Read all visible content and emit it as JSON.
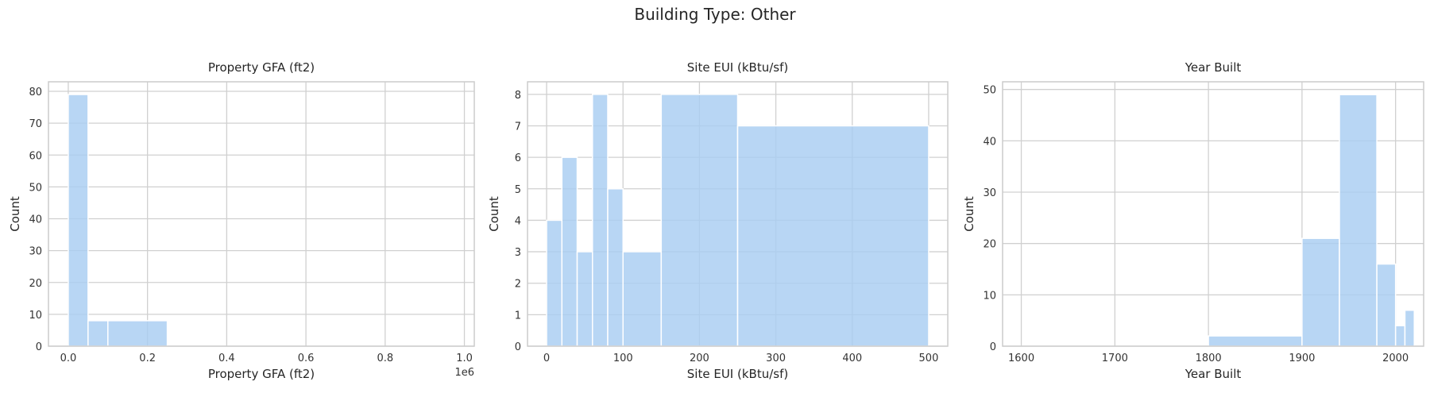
{
  "suptitle": "Building Type: Other",
  "colors": {
    "bar": "#a8cdf2",
    "grid": "#d0d0d0",
    "frame": "#cccccc",
    "bar_edge": "#ffffff"
  },
  "chart_data": [
    {
      "type": "bar",
      "histogram": true,
      "title": "Property GFA (ft2)",
      "xlabel": "Property GFA (ft2)",
      "ylabel": "Count",
      "x_offset_label": "1e6",
      "xlim": [
        -0.05,
        1.025
      ],
      "ylim": [
        0,
        83
      ],
      "xticks": [
        0.0,
        0.2,
        0.4,
        0.6,
        0.8,
        1.0
      ],
      "xtick_labels": [
        "0.0",
        "0.2",
        "0.4",
        "0.6",
        "0.8",
        "1.0"
      ],
      "yticks": [
        0,
        10,
        20,
        30,
        40,
        50,
        60,
        70,
        80
      ],
      "bins": [
        {
          "from": 0.0,
          "to": 0.05,
          "count": 79
        },
        {
          "from": 0.05,
          "to": 0.1,
          "count": 8
        },
        {
          "from": 0.1,
          "to": 0.25,
          "count": 8
        },
        {
          "from": 0.25,
          "to": 0.5,
          "count": 0
        },
        {
          "from": 0.5,
          "to": 1.0,
          "count": 0
        }
      ],
      "grid": true
    },
    {
      "type": "bar",
      "histogram": true,
      "title": "Site EUI (kBtu/sf)",
      "xlabel": "Site EUI (kBtu/sf)",
      "ylabel": "Count",
      "x_offset_label": "",
      "xlim": [
        -25,
        525
      ],
      "ylim": [
        0,
        8.4
      ],
      "xticks": [
        0,
        100,
        200,
        300,
        400,
        500
      ],
      "xtick_labels": [
        "0",
        "100",
        "200",
        "300",
        "400",
        "500"
      ],
      "yticks": [
        0,
        1,
        2,
        3,
        4,
        5,
        6,
        7,
        8
      ],
      "bins": [
        {
          "from": 0,
          "to": 20,
          "count": 4
        },
        {
          "from": 20,
          "to": 40,
          "count": 6
        },
        {
          "from": 40,
          "to": 60,
          "count": 3
        },
        {
          "from": 60,
          "to": 80,
          "count": 8
        },
        {
          "from": 80,
          "to": 100,
          "count": 5
        },
        {
          "from": 100,
          "to": 150,
          "count": 3
        },
        {
          "from": 150,
          "to": 250,
          "count": 8
        },
        {
          "from": 250,
          "to": 500,
          "count": 7
        }
      ],
      "grid": true
    },
    {
      "type": "bar",
      "histogram": true,
      "title": "Year Built",
      "xlabel": "Year Built",
      "ylabel": "Count",
      "x_offset_label": "",
      "xlim": [
        1580,
        2030
      ],
      "ylim": [
        0,
        51.5
      ],
      "xticks": [
        1600,
        1700,
        1800,
        1900,
        2000
      ],
      "xtick_labels": [
        "1600",
        "1700",
        "1800",
        "1900",
        "2000"
      ],
      "yticks": [
        0,
        10,
        20,
        30,
        40,
        50
      ],
      "bins": [
        {
          "from": 1600,
          "to": 1800,
          "count": 0
        },
        {
          "from": 1800,
          "to": 1900,
          "count": 2
        },
        {
          "from": 1900,
          "to": 1940,
          "count": 21
        },
        {
          "from": 1940,
          "to": 1980,
          "count": 49
        },
        {
          "from": 1980,
          "to": 2000,
          "count": 16
        },
        {
          "from": 2000,
          "to": 2010,
          "count": 4
        },
        {
          "from": 2010,
          "to": 2020,
          "count": 7
        }
      ],
      "grid": true
    }
  ]
}
